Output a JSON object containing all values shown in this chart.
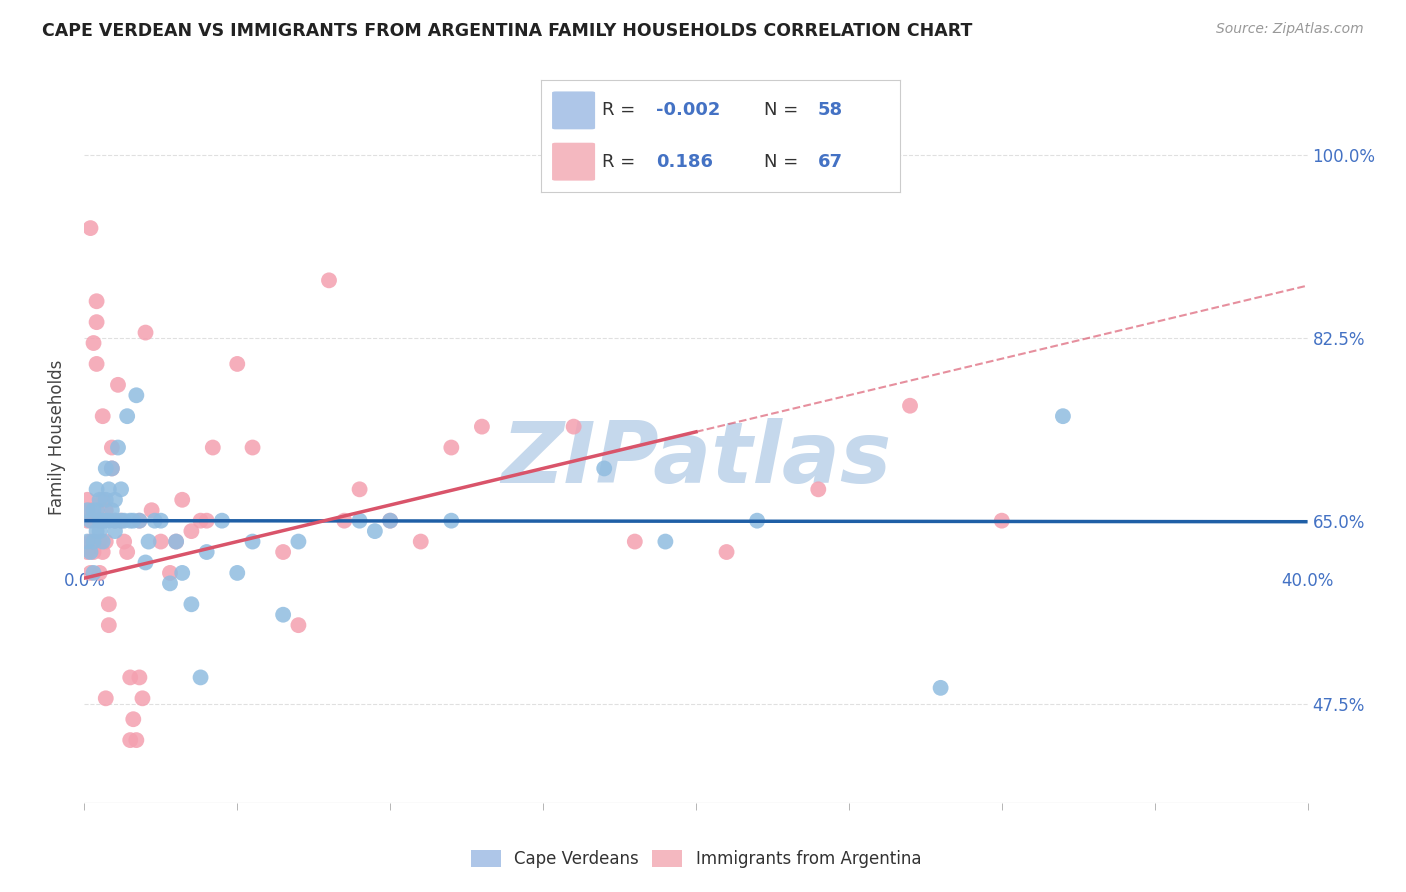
{
  "title": "CAPE VERDEAN VS IMMIGRANTS FROM ARGENTINA FAMILY HOUSEHOLDS CORRELATION CHART",
  "source": "Source: ZipAtlas.com",
  "ylabel": "Family Households",
  "legend_blue_R": "-0.002",
  "legend_blue_N": "58",
  "legend_pink_R": "0.186",
  "legend_pink_N": "67",
  "blue_scatter_color": "#90bce0",
  "pink_scatter_color": "#f4a0b0",
  "blue_line_color": "#1f5fa6",
  "pink_line_color": "#d9546a",
  "xlim": [
    0.0,
    0.4
  ],
  "ylim": [
    0.38,
    1.08
  ],
  "x_ticks": [
    0.0,
    0.4
  ],
  "x_tick_labels": [
    "0.0%",
    "40.0%"
  ],
  "y_ticks": [
    0.475,
    0.65,
    0.825,
    1.0
  ],
  "y_tick_labels": [
    "47.5%",
    "65.0%",
    "82.5%",
    "100.0%"
  ],
  "watermark": "ZIPatlas",
  "watermark_color": "#c5d8ec",
  "background_color": "#ffffff",
  "grid_color": "#e0e0e0",
  "title_color": "#222222",
  "source_color": "#999999",
  "axis_label_color": "#4472c4",
  "legend_text_color": "#4472c4",
  "legend_box_color": "#cccccc",
  "blue_reg_line": {
    "x0": 0.0,
    "x1": 0.4,
    "y0": 0.65,
    "y1": 0.649
  },
  "pink_solid_line": {
    "x0": 0.0,
    "x1": 0.2,
    "y0": 0.595,
    "y1": 0.735
  },
  "pink_dashed_line": {
    "x0": 0.2,
    "x1": 0.4,
    "y0": 0.735,
    "y1": 0.875
  },
  "blue_x": [
    0.001,
    0.001,
    0.002,
    0.002,
    0.003,
    0.003,
    0.003,
    0.004,
    0.004,
    0.004,
    0.005,
    0.005,
    0.005,
    0.006,
    0.006,
    0.007,
    0.007,
    0.007,
    0.008,
    0.008,
    0.009,
    0.009,
    0.01,
    0.01,
    0.01,
    0.011,
    0.012,
    0.012,
    0.013,
    0.014,
    0.015,
    0.016,
    0.017,
    0.018,
    0.02,
    0.021,
    0.023,
    0.025,
    0.028,
    0.03,
    0.032,
    0.035,
    0.038,
    0.04,
    0.045,
    0.05,
    0.055,
    0.065,
    0.07,
    0.09,
    0.095,
    0.1,
    0.12,
    0.17,
    0.19,
    0.22,
    0.28,
    0.32
  ],
  "blue_y": [
    0.63,
    0.66,
    0.62,
    0.65,
    0.6,
    0.63,
    0.66,
    0.64,
    0.66,
    0.68,
    0.64,
    0.65,
    0.67,
    0.63,
    0.65,
    0.65,
    0.67,
    0.7,
    0.65,
    0.68,
    0.66,
    0.7,
    0.64,
    0.65,
    0.67,
    0.72,
    0.65,
    0.68,
    0.65,
    0.75,
    0.65,
    0.65,
    0.77,
    0.65,
    0.61,
    0.63,
    0.65,
    0.65,
    0.59,
    0.63,
    0.6,
    0.57,
    0.5,
    0.62,
    0.65,
    0.6,
    0.63,
    0.56,
    0.63,
    0.65,
    0.64,
    0.65,
    0.65,
    0.7,
    0.63,
    0.65,
    0.49,
    0.75
  ],
  "pink_x": [
    0.001,
    0.001,
    0.001,
    0.002,
    0.002,
    0.002,
    0.003,
    0.003,
    0.003,
    0.003,
    0.004,
    0.004,
    0.004,
    0.005,
    0.005,
    0.005,
    0.006,
    0.006,
    0.006,
    0.006,
    0.007,
    0.007,
    0.007,
    0.008,
    0.008,
    0.009,
    0.009,
    0.01,
    0.011,
    0.012,
    0.013,
    0.014,
    0.015,
    0.016,
    0.017,
    0.018,
    0.019,
    0.02,
    0.022,
    0.025,
    0.028,
    0.03,
    0.032,
    0.035,
    0.038,
    0.04,
    0.042,
    0.05,
    0.055,
    0.065,
    0.07,
    0.08,
    0.085,
    0.09,
    0.1,
    0.11,
    0.12,
    0.13,
    0.16,
    0.18,
    0.21,
    0.24,
    0.27,
    0.3,
    0.002,
    0.015,
    0.018
  ],
  "pink_y": [
    0.62,
    0.65,
    0.67,
    0.6,
    0.63,
    0.66,
    0.62,
    0.63,
    0.65,
    0.82,
    0.8,
    0.84,
    0.86,
    0.6,
    0.63,
    0.65,
    0.62,
    0.65,
    0.67,
    0.75,
    0.48,
    0.63,
    0.66,
    0.55,
    0.57,
    0.7,
    0.72,
    0.65,
    0.78,
    0.65,
    0.63,
    0.62,
    0.44,
    0.46,
    0.44,
    0.65,
    0.48,
    0.83,
    0.66,
    0.63,
    0.6,
    0.63,
    0.67,
    0.64,
    0.65,
    0.65,
    0.72,
    0.8,
    0.72,
    0.62,
    0.55,
    0.88,
    0.65,
    0.68,
    0.65,
    0.63,
    0.72,
    0.74,
    0.74,
    0.63,
    0.62,
    0.68,
    0.76,
    0.65,
    0.93,
    0.5,
    0.5
  ]
}
